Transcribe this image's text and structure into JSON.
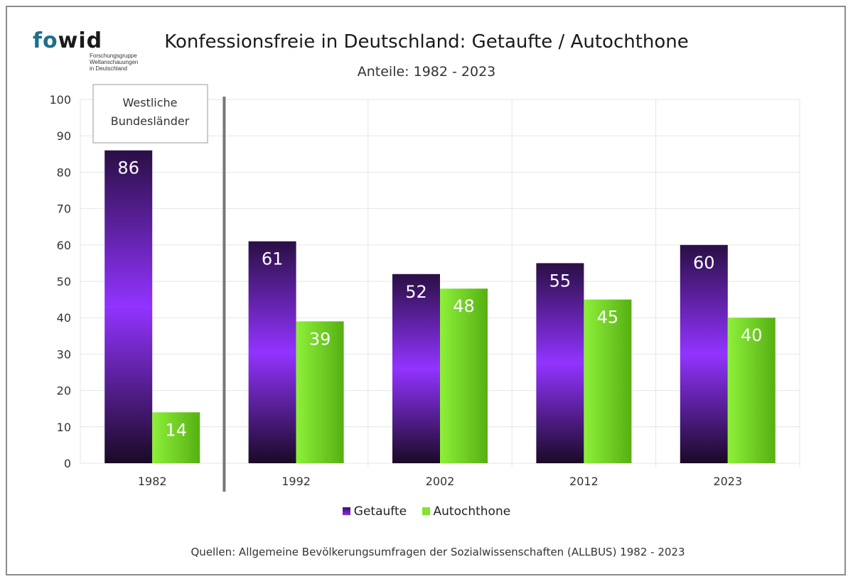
{
  "logo": {
    "word_fo": "fo",
    "word_wid": "wid",
    "subtitle": "Forschungsgruppe\nWeltanschauungen\nin Deutschland"
  },
  "header": {
    "title": "Konfessionsfreie in Deutschland: Getaufte / Autochthone",
    "subtitle": "Anteile: 1982 - 2023"
  },
  "annotation": {
    "line1": "Westliche",
    "line2": "Bundesländer"
  },
  "footer": {
    "source": "Quellen: Allgemeine Bevölkerungsumfragen der Sozialwissenschaften (ALLBUS) 1982 - 2023"
  },
  "colors": {
    "getaufte": "#8a2be2",
    "getaufte_dark": "#1e0b2e",
    "autochthone": "#7fe62a",
    "autochthone_dark": "#4aa30c",
    "grid": "#e6e6e6",
    "separator": "#777777"
  },
  "chart_data": {
    "type": "bar",
    "title": "Konfessionsfreie in Deutschland: Getaufte / Autochthone",
    "subtitle": "Anteile: 1982 - 2023",
    "categories": [
      "1982",
      "1992",
      "2002",
      "2012",
      "2023"
    ],
    "series": [
      {
        "name": "Getaufte",
        "values": [
          86,
          61,
          52,
          55,
          60
        ]
      },
      {
        "name": "Autochthone",
        "values": [
          14,
          39,
          48,
          45,
          40
        ]
      }
    ],
    "yticks": [
      "0",
      "10",
      "20",
      "30",
      "40",
      "50",
      "60",
      "70",
      "80",
      "90",
      "100"
    ],
    "ylim": [
      0,
      100
    ],
    "xlabel": "",
    "ylabel": "",
    "grid": true,
    "legend": "bottom"
  }
}
